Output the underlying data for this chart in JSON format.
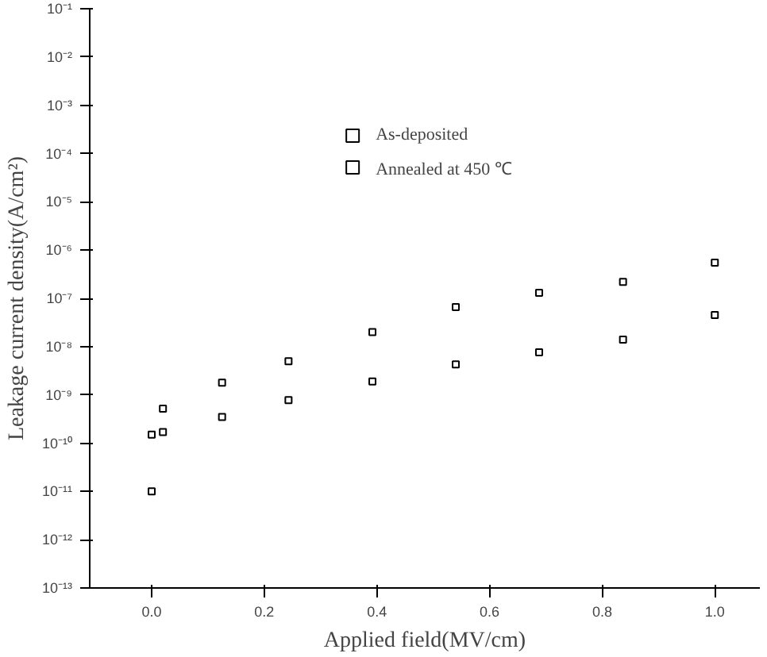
{
  "chart_data": {
    "type": "scatter",
    "xlabel": "Applied field(MV/cm)",
    "ylabel": "Leakage current density(A/cm²)",
    "log": "y",
    "grid": false,
    "legend": "top",
    "marker": "square",
    "xlim": [
      -0.11,
      1.08
    ],
    "xticks": [
      {
        "value": 0,
        "label": "0.0"
      },
      0.2,
      0.4,
      0.6,
      0.8,
      {
        "value": 1,
        "label": "1.0"
      }
    ],
    "ylim": [
      1e-13,
      0.1
    ],
    "yticks": [
      {
        "value": 1e-13,
        "label": "10⁻¹³"
      },
      {
        "value": 1e-12,
        "label": "10⁻¹²"
      },
      {
        "value": 1e-11,
        "label": "10⁻¹¹"
      },
      {
        "value": 1e-10,
        "label": "10⁻¹⁰"
      },
      {
        "value": 1e-09,
        "label": "10⁻⁹"
      },
      {
        "value": 1e-08,
        "label": "10⁻⁸"
      },
      {
        "value": 1e-07,
        "label": "10⁻⁷"
      },
      {
        "value": 1e-06,
        "label": "10⁻⁶"
      },
      {
        "value": 1e-05,
        "label": "10⁻⁵"
      },
      {
        "value": 0.0001,
        "label": "10⁻⁴"
      },
      {
        "value": 0.001,
        "label": "10⁻³"
      },
      {
        "value": 0.01,
        "label": "10⁻²"
      },
      {
        "value": 0.1,
        "label": "10⁻¹"
      }
    ],
    "x": [
      0.0,
      0.02,
      0.125,
      0.243,
      0.392,
      0.54,
      0.688,
      0.837,
      1.0
    ],
    "series": [
      {
        "name": "As-deposited",
        "color": "#000000",
        "values": [
          1e-11,
          5.2e-10,
          1.8e-09,
          5e-09,
          2e-08,
          6.6e-08,
          1.3e-07,
          2.2e-07,
          5.5e-07
        ]
      },
      {
        "name": "Annealed at 450 ℃",
        "color": "#000000",
        "values": [
          1.5e-10,
          1.7e-10,
          3.5e-10,
          7.8e-10,
          1.9e-09,
          4.3e-09,
          7.6e-09,
          1.4e-08,
          4.5e-08
        ]
      }
    ]
  }
}
